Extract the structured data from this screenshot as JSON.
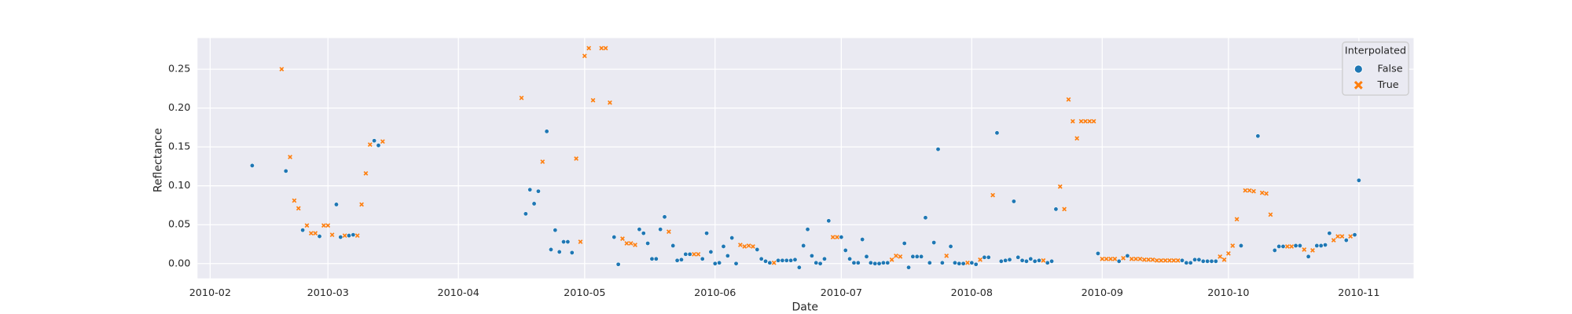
{
  "chart_data": {
    "type": "scatter",
    "x_label": "Date",
    "y_label": "Reflectance",
    "xlim": [
      "2010-01-29",
      "2010-11-14"
    ],
    "xticks": [
      "2010-02",
      "2010-03",
      "2010-04",
      "2010-05",
      "2010-06",
      "2010-07",
      "2010-08",
      "2010-09",
      "2010-10",
      "2010-11"
    ],
    "ylim": [
      -0.019,
      0.29
    ],
    "yticks": [
      {
        "value": 0,
        "label": "0.00"
      },
      0.05,
      {
        "value": 0.1,
        "label": "0.10"
      },
      0.15,
      {
        "value": 0.2,
        "label": "0.20"
      },
      0.25
    ],
    "grid": true,
    "legend_title": "Interpolated",
    "legend_location": "upper right",
    "series": [
      {
        "name": "False",
        "color": "#1f77b4",
        "marker": "circle",
        "x": [
          "2010-02-11",
          "2010-02-19",
          "2010-02-23",
          "2010-02-27",
          "2010-03-03",
          "2010-03-04",
          "2010-03-06",
          "2010-03-07",
          "2010-03-12",
          "2010-03-13",
          "2010-04-17",
          "2010-04-18",
          "2010-04-19",
          "2010-04-20",
          "2010-04-22",
          "2010-04-23",
          "2010-04-24",
          "2010-04-25",
          "2010-04-26",
          "2010-04-27",
          "2010-04-28",
          "2010-05-08",
          "2010-05-09",
          "2010-05-14",
          "2010-05-15",
          "2010-05-16",
          "2010-05-17",
          "2010-05-18",
          "2010-05-19",
          "2010-05-20",
          "2010-05-22",
          "2010-05-23",
          "2010-05-24",
          "2010-05-25",
          "2010-05-26",
          "2010-05-29",
          "2010-05-30",
          "2010-05-31",
          "2010-06-01",
          "2010-06-02",
          "2010-06-03",
          "2010-06-04",
          "2010-06-05",
          "2010-06-06",
          "2010-06-11",
          "2010-06-12",
          "2010-06-13",
          "2010-06-14",
          "2010-06-16",
          "2010-06-17",
          "2010-06-18",
          "2010-06-19",
          "2010-06-20",
          "2010-06-21",
          "2010-06-22",
          "2010-06-23",
          "2010-06-24",
          "2010-06-25",
          "2010-06-26",
          "2010-06-27",
          "2010-06-28",
          "2010-07-01",
          "2010-07-02",
          "2010-07-03",
          "2010-07-04",
          "2010-07-05",
          "2010-07-06",
          "2010-07-07",
          "2010-07-08",
          "2010-07-09",
          "2010-07-10",
          "2010-07-11",
          "2010-07-12",
          "2010-07-16",
          "2010-07-17",
          "2010-07-18",
          "2010-07-19",
          "2010-07-20",
          "2010-07-21",
          "2010-07-22",
          "2010-07-23",
          "2010-07-24",
          "2010-07-25",
          "2010-07-27",
          "2010-07-28",
          "2010-07-29",
          "2010-07-30",
          "2010-08-01",
          "2010-08-02",
          "2010-08-04",
          "2010-08-05",
          "2010-08-07",
          "2010-08-08",
          "2010-08-09",
          "2010-08-10",
          "2010-08-11",
          "2010-08-12",
          "2010-08-13",
          "2010-08-14",
          "2010-08-15",
          "2010-08-16",
          "2010-08-17",
          "2010-08-19",
          "2010-08-20",
          "2010-08-21",
          "2010-08-31",
          "2010-09-05",
          "2010-09-07",
          "2010-09-20",
          "2010-09-21",
          "2010-09-22",
          "2010-09-23",
          "2010-09-24",
          "2010-09-25",
          "2010-09-26",
          "2010-09-27",
          "2010-09-28",
          "2010-10-04",
          "2010-10-08",
          "2010-10-12",
          "2010-10-13",
          "2010-10-14",
          "2010-10-17",
          "2010-10-18",
          "2010-10-20",
          "2010-10-22",
          "2010-10-23",
          "2010-10-24",
          "2010-10-25",
          "2010-10-29",
          "2010-10-31",
          "2010-11-01"
        ],
        "values": [
          0.126,
          0.119,
          0.043,
          0.035,
          0.076,
          0.034,
          0.036,
          0.037,
          0.158,
          0.152,
          0.064,
          0.095,
          0.077,
          0.093,
          0.17,
          0.018,
          0.043,
          0.015,
          0.028,
          0.028,
          0.014,
          0.034,
          -0.001,
          0.044,
          0.039,
          0.026,
          0.006,
          0.006,
          0.044,
          0.06,
          0.023,
          0.004,
          0.005,
          0.012,
          0.012,
          0.006,
          0.039,
          0.015,
          0,
          0.001,
          0.022,
          0.01,
          0.033,
          0,
          0.018,
          0.006,
          0.003,
          0.001,
          0.004,
          0.004,
          0.004,
          0.004,
          0.005,
          -0.005,
          0.023,
          0.044,
          0.01,
          0.001,
          0,
          0.006,
          0.055,
          0.034,
          0.017,
          0.006,
          0.001,
          0.001,
          0.031,
          0.009,
          0.001,
          0,
          0,
          0.001,
          0.001,
          0.026,
          -0.005,
          0.009,
          0.009,
          0.009,
          0.059,
          0.001,
          0.027,
          0.147,
          0.001,
          0.022,
          0.001,
          0,
          0,
          0.001,
          -0.001,
          0.008,
          0.008,
          0.168,
          0.003,
          0.004,
          0.005,
          0.08,
          0.008,
          0.004,
          0.003,
          0.006,
          0.003,
          0.004,
          0.001,
          0.003,
          0.07,
          0.013,
          0.003,
          0.01,
          0.004,
          0.001,
          0.001,
          0.005,
          0.005,
          0.003,
          0.003,
          0.003,
          0.003,
          0.023,
          0.164,
          0.017,
          0.022,
          0.022,
          0.023,
          0.023,
          0.009,
          0.023,
          0.023,
          0.024,
          0.039,
          0.03,
          0.037,
          0.107
        ]
      },
      {
        "name": "True",
        "color": "#ff7f0e",
        "marker": "x",
        "x": [
          "2010-02-18",
          "2010-02-20",
          "2010-02-21",
          "2010-02-22",
          "2010-02-24",
          "2010-02-25",
          "2010-02-26",
          "2010-02-28",
          "2010-03-01",
          "2010-03-02",
          "2010-03-05",
          "2010-03-08",
          "2010-03-09",
          "2010-03-10",
          "2010-03-11",
          "2010-03-14",
          "2010-04-16",
          "2010-04-21",
          "2010-04-29",
          "2010-04-30",
          "2010-05-01",
          "2010-05-02",
          "2010-05-03",
          "2010-05-05",
          "2010-05-06",
          "2010-05-07",
          "2010-05-10",
          "2010-05-11",
          "2010-05-12",
          "2010-05-13",
          "2010-05-21",
          "2010-05-27",
          "2010-05-28",
          "2010-06-07",
          "2010-06-08",
          "2010-06-09",
          "2010-06-10",
          "2010-06-15",
          "2010-06-29",
          "2010-06-30",
          "2010-07-13",
          "2010-07-14",
          "2010-07-15",
          "2010-07-26",
          "2010-07-31",
          "2010-08-03",
          "2010-08-06",
          "2010-08-18",
          "2010-08-22",
          "2010-08-23",
          "2010-08-24",
          "2010-08-25",
          "2010-08-26",
          "2010-08-27",
          "2010-08-28",
          "2010-08-29",
          "2010-08-30",
          "2010-09-01",
          "2010-09-02",
          "2010-09-03",
          "2010-09-04",
          "2010-09-06",
          "2010-09-08",
          "2010-09-09",
          "2010-09-10",
          "2010-09-11",
          "2010-09-12",
          "2010-09-13",
          "2010-09-14",
          "2010-09-15",
          "2010-09-16",
          "2010-09-17",
          "2010-09-18",
          "2010-09-19",
          "2010-09-29",
          "2010-09-30",
          "2010-10-01",
          "2010-10-02",
          "2010-10-03",
          "2010-10-05",
          "2010-10-06",
          "2010-10-07",
          "2010-10-09",
          "2010-10-10",
          "2010-10-11",
          "2010-10-15",
          "2010-10-16",
          "2010-10-19",
          "2010-10-21",
          "2010-10-26",
          "2010-10-27",
          "2010-10-28",
          "2010-10-30"
        ],
        "values": [
          0.25,
          0.137,
          0.081,
          0.071,
          0.049,
          0.039,
          0.039,
          0.049,
          0.049,
          0.037,
          0.036,
          0.036,
          0.076,
          0.116,
          0.153,
          0.157,
          0.213,
          0.131,
          0.135,
          0.028,
          0.267,
          0.277,
          0.21,
          0.277,
          0.277,
          0.207,
          0.032,
          0.026,
          0.026,
          0.024,
          0.041,
          0.012,
          0.012,
          0.024,
          0.022,
          0.023,
          0.022,
          0.001,
          0.034,
          0.034,
          0.005,
          0.01,
          0.009,
          0.01,
          0.001,
          0.005,
          0.088,
          0.004,
          0.099,
          0.07,
          0.211,
          0.183,
          0.161,
          0.183,
          0.183,
          0.183,
          0.183,
          0.006,
          0.006,
          0.006,
          0.006,
          0.007,
          0.006,
          0.006,
          0.006,
          0.005,
          0.005,
          0.005,
          0.004,
          0.004,
          0.004,
          0.004,
          0.004,
          0.004,
          0.009,
          0.005,
          0.013,
          0.023,
          0.057,
          0.094,
          0.094,
          0.093,
          0.091,
          0.09,
          0.063,
          0.022,
          0.022,
          0.018,
          0.017,
          0.03,
          0.035,
          0.035,
          0.035
        ]
      }
    ]
  }
}
